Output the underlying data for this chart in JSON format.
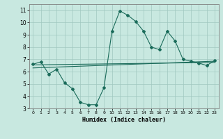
{
  "xlabel": "Humidex (Indice chaleur)",
  "ylabel": "",
  "xlim": [
    -0.5,
    23.5
  ],
  "ylim": [
    3,
    11.5
  ],
  "xticks": [
    0,
    1,
    2,
    3,
    4,
    5,
    6,
    7,
    8,
    9,
    10,
    11,
    12,
    13,
    14,
    15,
    16,
    17,
    18,
    19,
    20,
    21,
    22,
    23
  ],
  "yticks": [
    3,
    4,
    5,
    6,
    7,
    8,
    9,
    10,
    11
  ],
  "bg_color": "#c8e8e0",
  "grid_color": "#a0c8c0",
  "line_color": "#1a6b5a",
  "curve1_x": [
    0,
    1,
    2,
    3,
    4,
    5,
    6,
    7,
    8,
    9,
    10,
    11,
    12,
    13,
    14,
    15,
    16,
    17,
    18,
    19,
    20,
    21,
    22,
    23
  ],
  "curve1_y": [
    6.6,
    6.8,
    5.8,
    6.2,
    5.1,
    4.6,
    3.5,
    3.3,
    3.3,
    4.7,
    9.3,
    10.95,
    10.6,
    10.1,
    9.3,
    8.0,
    7.8,
    9.3,
    8.5,
    7.0,
    6.85,
    6.7,
    6.5,
    6.9
  ],
  "line1_x": [
    0,
    23
  ],
  "line1_y": [
    6.55,
    6.75
  ],
  "line2_x": [
    0,
    23
  ],
  "line2_y": [
    6.3,
    6.85
  ]
}
